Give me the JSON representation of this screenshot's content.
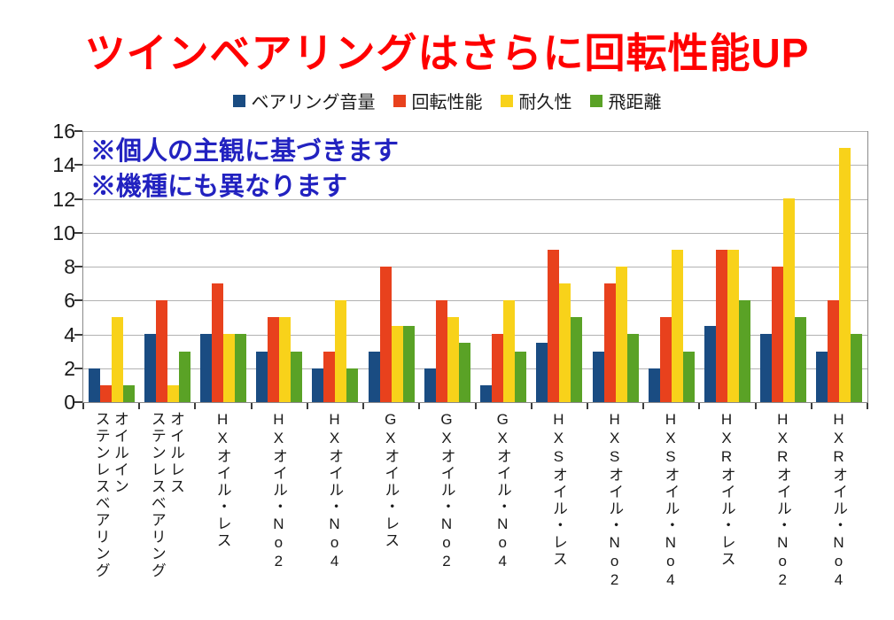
{
  "title": {
    "text": "ツインベアリングはさらに回転性能UP"
  },
  "annotations": {
    "line1": "※個人の主観に基づきます",
    "line2": "※機種にも異なります"
  },
  "colors": {
    "title": "#ff0000",
    "annotation": "#2222c0",
    "axis_text": "#1a1a1a",
    "grid": "#b2b2b2",
    "axis_line": "#8a8a8a",
    "tick": "#3c3c3c",
    "background": "#ffffff"
  },
  "chart_data": {
    "type": "bar",
    "title": "ツインベアリングはさらに回転性能UP",
    "xlabel": "",
    "ylabel": "",
    "ylim": [
      0,
      16
    ],
    "ytick_step": 2,
    "grid": true,
    "legend_position": "top",
    "categories": [
      "オイルイン\nステンレスベアリング",
      "オイルレス\nステンレスベアリング",
      "HXオイル・レス",
      "HXオイル・No2",
      "HXオイル・No4",
      "GXオイル・レス",
      "GXオイル・No2",
      "GXオイル・No4",
      "HXSオイル・レス",
      "HXSオイル・No2",
      "HXSオイル・No4",
      "HXRオイル・レス",
      "HXRオイル・No2",
      "HXRオイル・No4"
    ],
    "series": [
      {
        "key": "bearing-noise",
        "name": "ベアリング音量",
        "color": "#1a4c82",
        "values": [
          2,
          4,
          4,
          3,
          2,
          3,
          2,
          1,
          3.5,
          3,
          2,
          4.5,
          4,
          3
        ]
      },
      {
        "key": "rotation-performance",
        "name": "回転性能",
        "color": "#e8411d",
        "values": [
          1,
          6,
          7,
          5,
          3,
          8,
          6,
          4,
          9,
          7,
          5,
          9,
          8,
          6
        ]
      },
      {
        "key": "durability",
        "name": "耐久性",
        "color": "#f8d21a",
        "values": [
          5,
          1,
          4,
          5,
          6,
          4.5,
          5,
          6,
          7,
          8,
          9,
          9,
          12,
          15
        ]
      },
      {
        "key": "flight-distance",
        "name": "飛距離",
        "color": "#5aa226",
        "values": [
          1,
          3,
          4,
          3,
          2,
          4.5,
          3.5,
          3,
          5,
          4,
          3,
          6,
          5,
          4
        ]
      }
    ]
  }
}
